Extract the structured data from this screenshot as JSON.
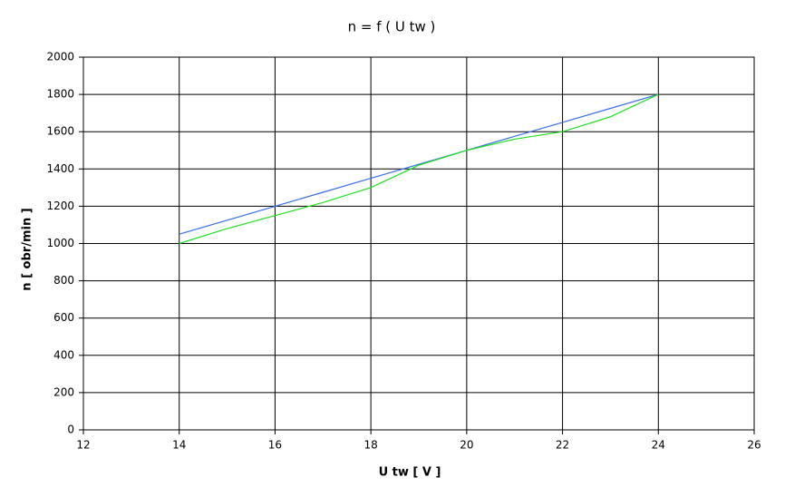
{
  "chart_data": {
    "type": "line",
    "title": "n = f ( U tw )",
    "x_label": "U tw [ V ]",
    "y_label": "n [ obr/min ]",
    "x": [
      14,
      15,
      16,
      17,
      18,
      19,
      20,
      21,
      22,
      23,
      24
    ],
    "series": [
      {
        "color": "#3a6ee8",
        "values": [
          1050,
          1125,
          1200,
          1275,
          1350,
          1425,
          1500,
          1575,
          1650,
          1725,
          1800
        ]
      },
      {
        "color": "#22e022",
        "values": [
          1000,
          1080,
          1150,
          1220,
          1300,
          1420,
          1500,
          1560,
          1600,
          1680,
          1800
        ]
      }
    ],
    "xlim": [
      12,
      26
    ],
    "xticks": [
      12,
      14,
      16,
      18,
      20,
      22,
      24,
      26
    ],
    "ylim": [
      0,
      2000
    ],
    "yticks": [
      0,
      200,
      400,
      600,
      800,
      1000,
      1200,
      1400,
      1600,
      1800,
      2000
    ],
    "grid": true
  }
}
